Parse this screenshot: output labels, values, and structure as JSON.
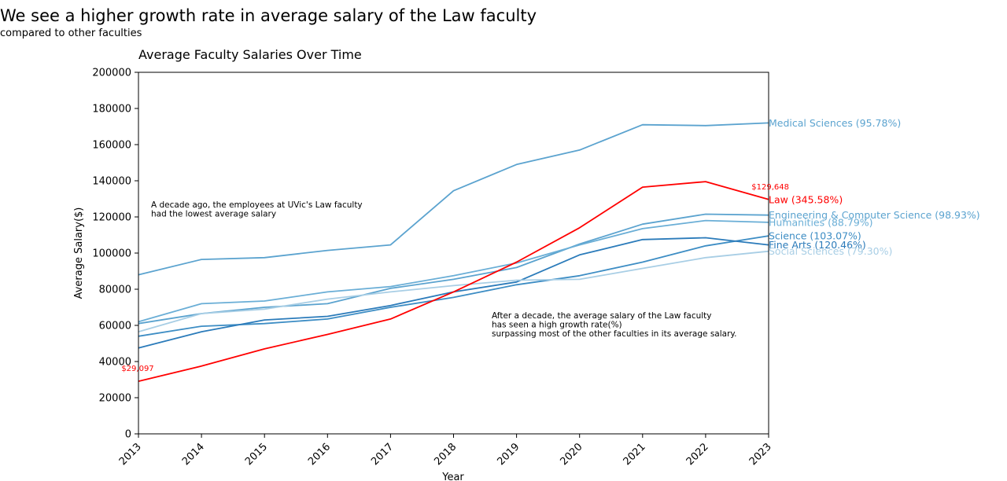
{
  "headline": "We see a higher growth rate in average salary of the Law faculty",
  "subheadline": "compared to other faculties",
  "chart_data": {
    "type": "line",
    "title": "Average Faculty Salaries Over Time",
    "xlabel": "Year",
    "ylabel": "Average Salary($)",
    "x": [
      2013,
      2014,
      2015,
      2016,
      2017,
      2018,
      2019,
      2020,
      2021,
      2022,
      2023
    ],
    "xlim": [
      2013,
      2023
    ],
    "ylim": [
      0,
      200000
    ],
    "yticks": [
      0,
      20000,
      40000,
      60000,
      80000,
      100000,
      120000,
      140000,
      160000,
      180000,
      200000
    ],
    "grid": false,
    "series": [
      {
        "name": "Medical Sciences (95.78%)",
        "color": "#5ba3cf",
        "values": [
          88000,
          96500,
          97500,
          101500,
          104500,
          134500,
          149000,
          157000,
          171000,
          170500,
          172000
        ]
      },
      {
        "name": "Law (345.58%)",
        "color": "#ff0000",
        "values": [
          29097,
          37500,
          47000,
          55000,
          63500,
          78500,
          95000,
          114000,
          136500,
          139500,
          129648
        ]
      },
      {
        "name": "Engineering & Computer Science (98.93%)",
        "color": "#5ba3cf",
        "values": [
          61000,
          66500,
          70000,
          72000,
          80500,
          85500,
          92000,
          105000,
          116000,
          121500,
          121000
        ]
      },
      {
        "name": "Humanities (88.79%)",
        "color": "#6aaed6",
        "values": [
          62000,
          72000,
          73500,
          78500,
          81500,
          87500,
          94500,
          104500,
          113500,
          118000,
          117000
        ]
      },
      {
        "name": "Science (103.07%)",
        "color": "#3d8dc4",
        "values": [
          54000,
          59500,
          61000,
          63500,
          70000,
          75500,
          82500,
          87500,
          95000,
          104000,
          109500
        ]
      },
      {
        "name": "Fine Arts (120.46%)",
        "color": "#2b7bba",
        "values": [
          47500,
          56500,
          63000,
          65000,
          71000,
          78500,
          84000,
          99000,
          107500,
          108500,
          104500
        ]
      },
      {
        "name": "Social Sciences (79.30%)",
        "color": "#a8cee5",
        "values": [
          56500,
          66500,
          69000,
          74500,
          78500,
          82000,
          85000,
          85500,
          91500,
          97500,
          101000
        ]
      }
    ],
    "value_labels": [
      {
        "text": "$29,097",
        "x": 2013,
        "y": 29097
      },
      {
        "text": "$129,648",
        "x": 2023,
        "y": 129648
      }
    ],
    "annotations": [
      {
        "lines": [
          "A decade ago, the employees at UVic's Law faculty",
          "had the lowest average salary"
        ]
      },
      {
        "lines": [
          "After a decade, the average salary of the Law faculty",
          "has seen a high growth rate(%)",
          "surpassing most of the other faculties in its average salary."
        ]
      }
    ]
  }
}
